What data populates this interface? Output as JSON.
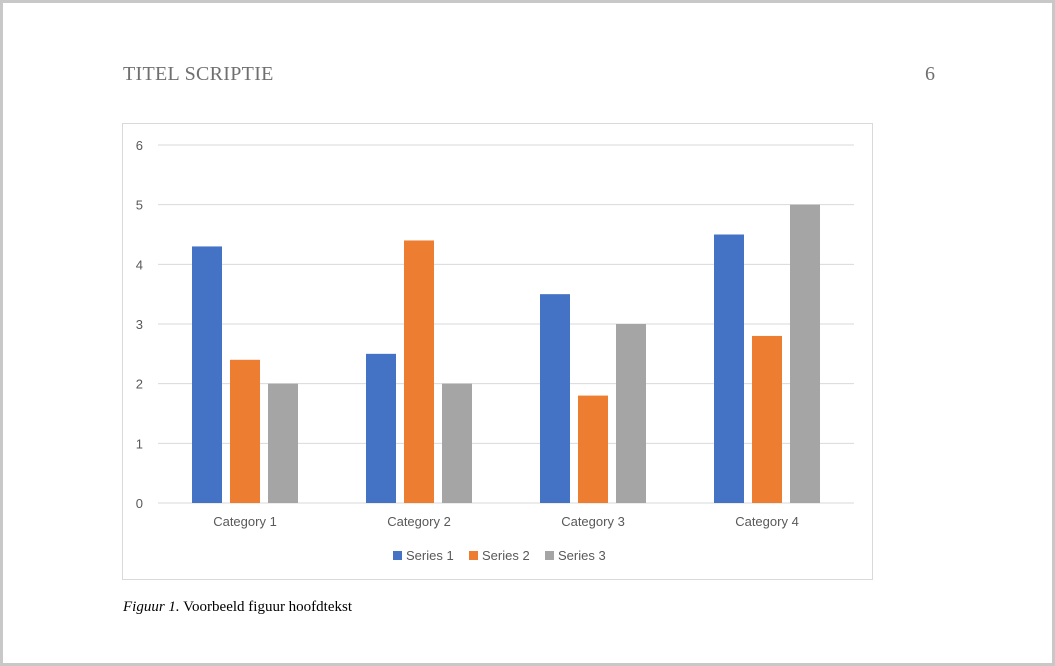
{
  "header": {
    "title": "TITEL SCRIPTIE",
    "page_number": "6"
  },
  "caption": {
    "label": "Figuur 1.",
    "text": " Voorbeeld figuur hoofdtekst"
  },
  "colors": {
    "series_1": "#4472C4",
    "series_2": "#ED7D31",
    "series_3": "#A5A5A5",
    "gridline": "#d9d9d9",
    "tick_text": "#595959"
  },
  "chart_data": {
    "type": "bar",
    "categories": [
      "Category 1",
      "Category 2",
      "Category 3",
      "Category 4"
    ],
    "series": [
      {
        "name": "Series 1",
        "values": [
          4.3,
          2.5,
          3.5,
          4.5
        ]
      },
      {
        "name": "Series 2",
        "values": [
          2.4,
          4.4,
          1.8,
          2.8
        ]
      },
      {
        "name": "Series 3",
        "values": [
          2,
          2,
          3,
          5
        ]
      }
    ],
    "title": "",
    "xlabel": "",
    "ylabel": "",
    "ylim": [
      0,
      6
    ],
    "y_ticks": [
      "0",
      "1",
      "2",
      "3",
      "4",
      "5",
      "6"
    ],
    "grid": true,
    "legend_position": "bottom"
  }
}
